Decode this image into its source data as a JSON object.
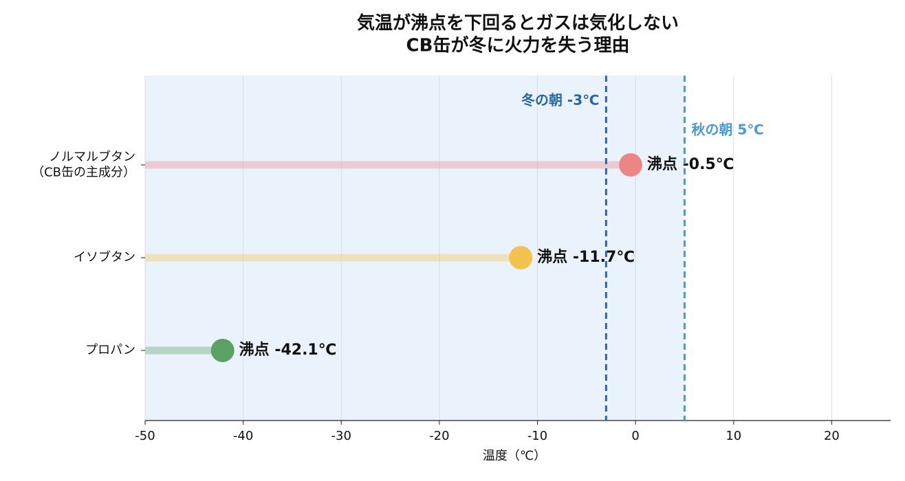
{
  "chart_data": {
    "type": "lollipop",
    "title": "気温が沸点を下回るとガスは気化しない\nCB缶が冬に火力を失う理由",
    "xlabel": "温度（℃）",
    "categories": [
      "ノルマルブタン\n（CB缶の主成分）",
      "イソブタン",
      "プロパン"
    ],
    "values": [
      -0.5,
      -11.7,
      -42.1
    ],
    "value_labels": [
      "沸点 -0.5℃",
      "沸点 -11.7℃",
      "沸点 -42.1℃"
    ],
    "colors": [
      "#ec8585",
      "#f3c24f",
      "#5ba065"
    ],
    "xlim": [
      -50,
      26
    ],
    "xticks": [
      -50,
      -40,
      -30,
      -20,
      -10,
      0,
      10,
      20
    ],
    "grid": true,
    "shade_range": [
      -50,
      5
    ],
    "reference_lines": [
      {
        "value": -3,
        "label": "冬の朝 -3℃",
        "color": "#2866a8"
      },
      {
        "value": 5,
        "label": "秋の朝 5℃",
        "color": "#4a98d6"
      }
    ]
  }
}
